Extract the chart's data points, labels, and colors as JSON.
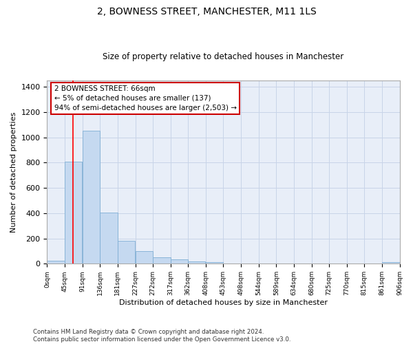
{
  "title": "2, BOWNESS STREET, MANCHESTER, M11 1LS",
  "subtitle": "Size of property relative to detached houses in Manchester",
  "xlabel": "Distribution of detached houses by size in Manchester",
  "ylabel": "Number of detached properties",
  "bar_color": "#c5d9f0",
  "bar_edge_color": "#7eaed4",
  "grid_color": "#c8d4e8",
  "background_color": "#e8eef8",
  "red_line_x": 66,
  "annotation_box_text": "2 BOWNESS STREET: 66sqm\n← 5% of detached houses are smaller (137)\n94% of semi-detached houses are larger (2,503) →",
  "annotation_box_color": "#cc0000",
  "bin_edges": [
    0,
    45,
    91,
    136,
    181,
    227,
    272,
    317,
    362,
    408,
    453,
    498,
    544,
    589,
    634,
    680,
    725,
    770,
    815,
    861,
    906
  ],
  "bar_heights": [
    25,
    808,
    1055,
    407,
    181,
    102,
    52,
    35,
    20,
    12,
    0,
    0,
    0,
    0,
    0,
    0,
    0,
    0,
    0,
    15
  ],
  "ylim": [
    0,
    1450
  ],
  "yticks": [
    0,
    200,
    400,
    600,
    800,
    1000,
    1200,
    1400
  ],
  "footnote": "Contains HM Land Registry data © Crown copyright and database right 2024.\nContains public sector information licensed under the Open Government Licence v3.0."
}
